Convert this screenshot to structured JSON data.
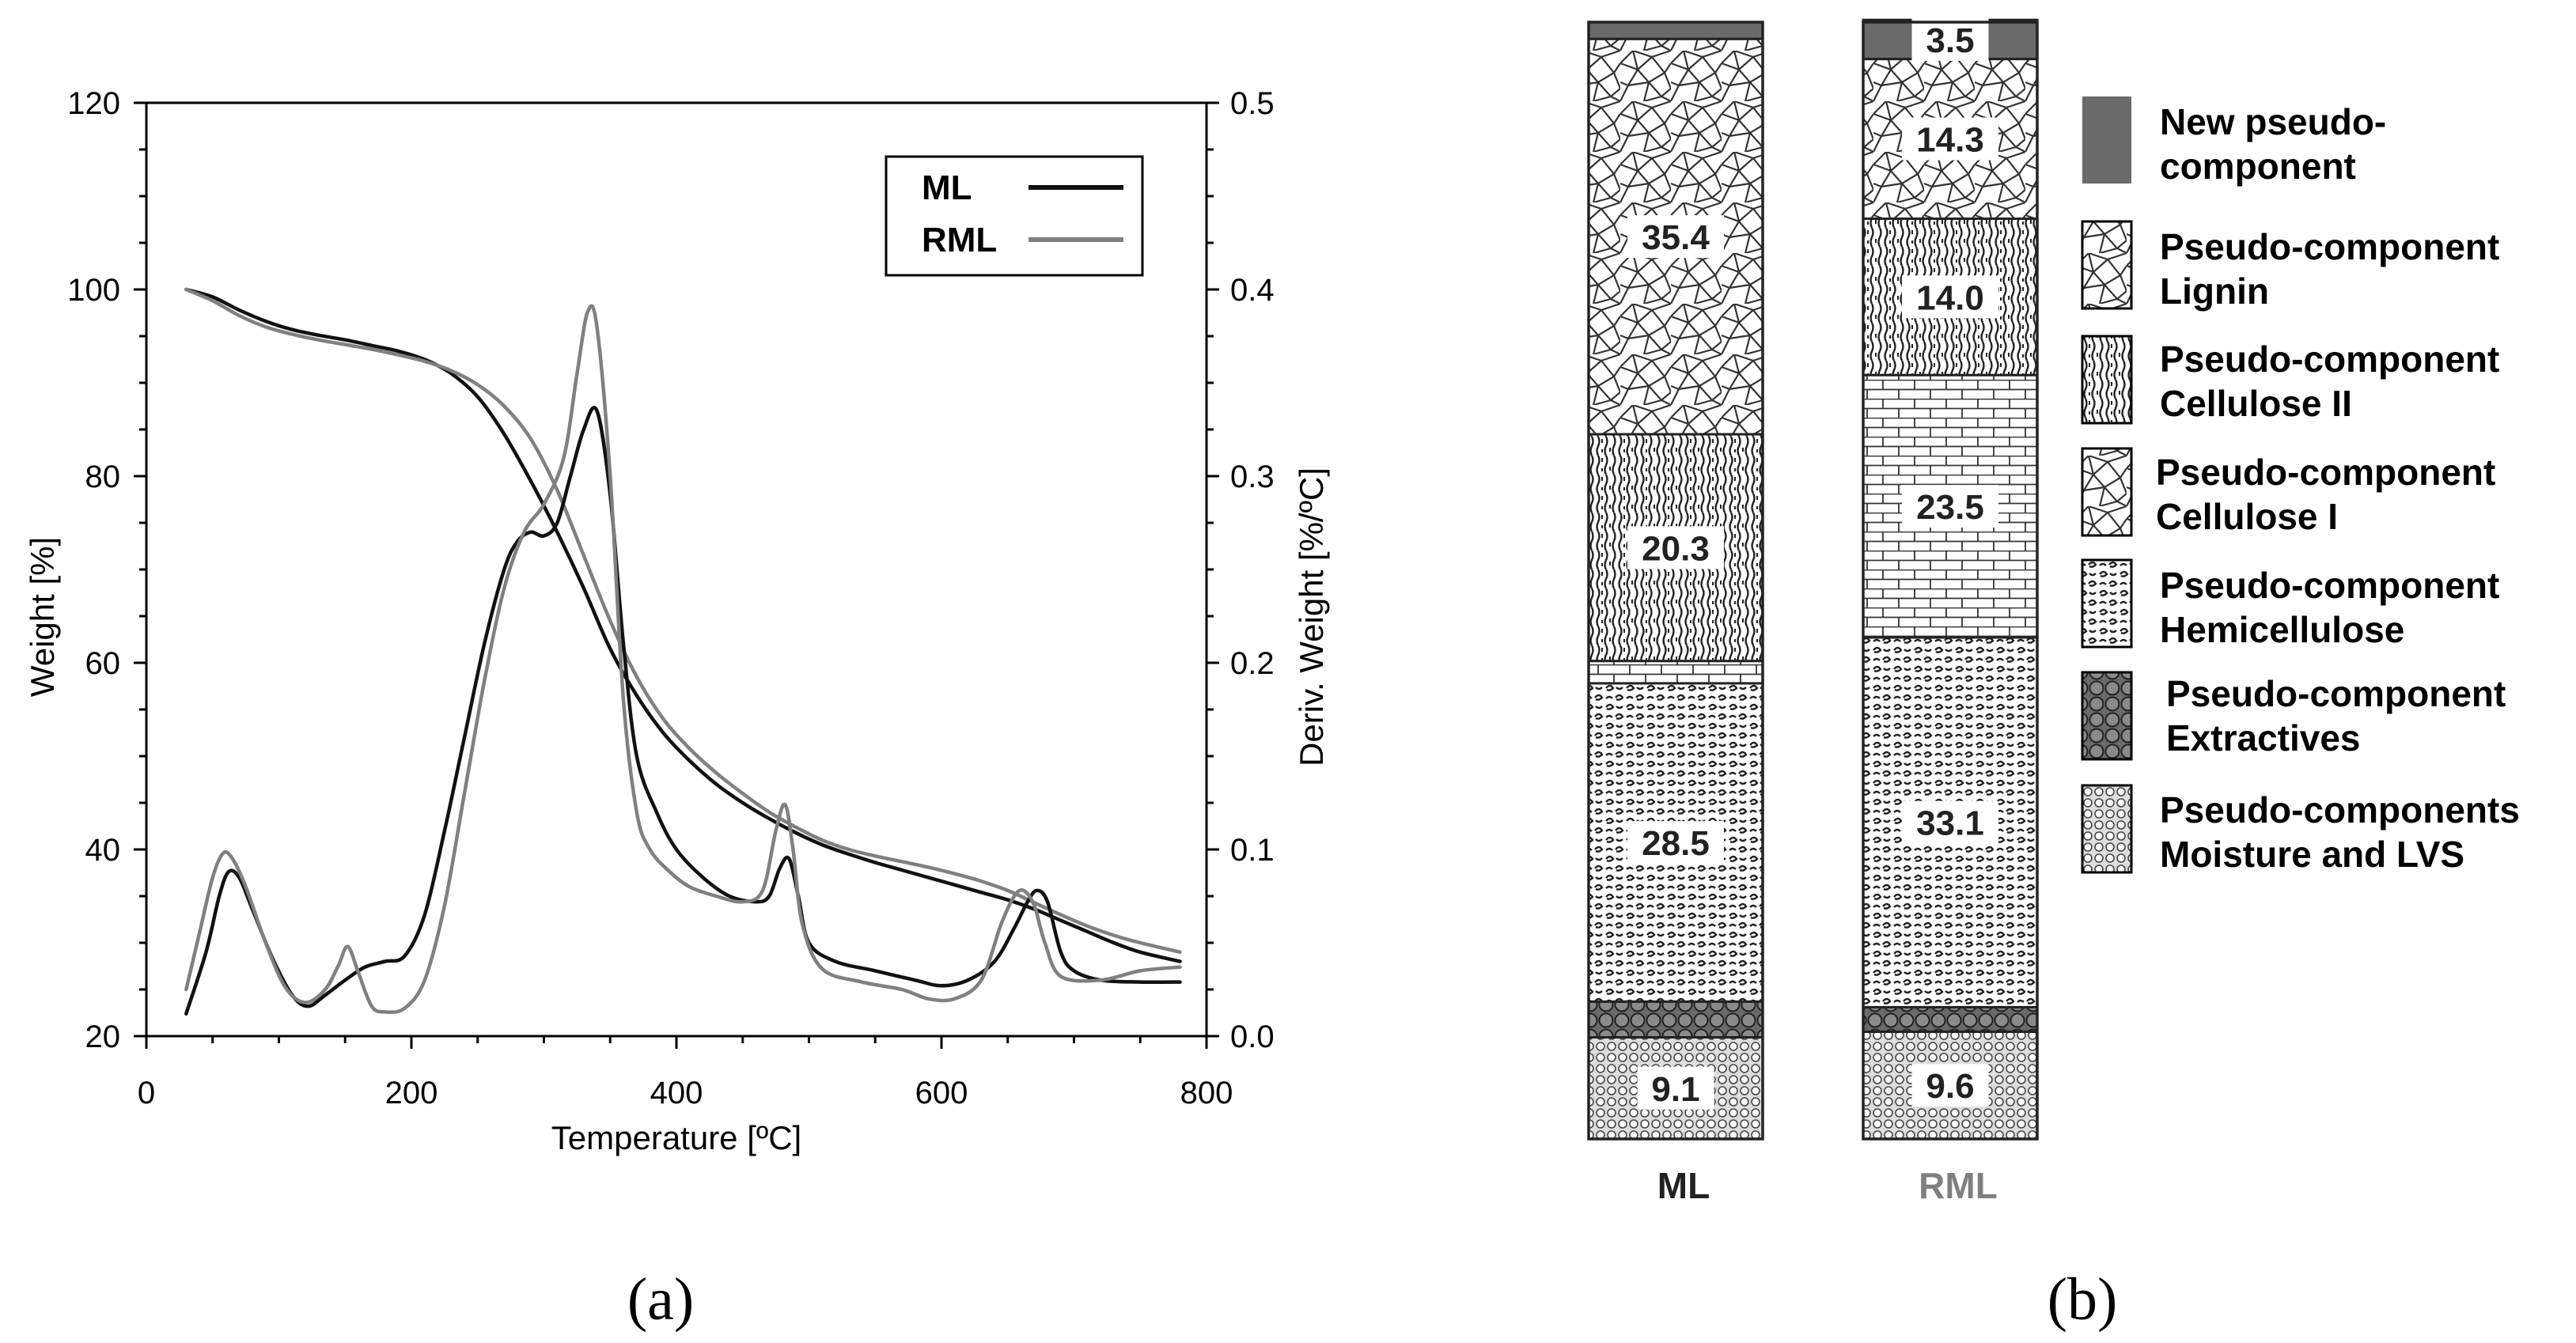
{
  "chart_data": [
    {
      "type": "line",
      "panel_label": "(a)",
      "xlabel": "Temperature [ºC]",
      "ylabel": "Weight [%]",
      "y2label": "Deriv. Weight [%/ºC]",
      "xlim": [
        0,
        800
      ],
      "ylim": [
        20,
        120
      ],
      "y2lim": [
        0.0,
        0.5
      ],
      "xticks": [
        0,
        200,
        400,
        600,
        800
      ],
      "yticks": [
        20,
        40,
        60,
        80,
        100,
        120
      ],
      "y2ticks": [
        "0.0",
        "0.1",
        "0.2",
        "0.3",
        "0.4",
        "0.5"
      ],
      "legend": {
        "position": "top-right",
        "entries": [
          "ML",
          "RML"
        ]
      },
      "colors": {
        "ML": "#111111",
        "RML": "#808080"
      },
      "series": [
        {
          "name": "ML",
          "kind": "weight",
          "axis": "left",
          "color": "#111111",
          "x": [
            30,
            50,
            70,
            90,
            110,
            130,
            150,
            170,
            190,
            210,
            230,
            250,
            270,
            290,
            310,
            330,
            350,
            370,
            390,
            410,
            430,
            450,
            470,
            490,
            510,
            530,
            550,
            570,
            590,
            610,
            630,
            650,
            670,
            690,
            710,
            730,
            750,
            780
          ],
          "y": [
            100,
            99.2,
            97.8,
            96.6,
            95.7,
            95.1,
            94.6,
            94.0,
            93.4,
            92.5,
            91.0,
            88.5,
            84.5,
            79.5,
            74.0,
            68.0,
            61.5,
            56.5,
            52.5,
            49.5,
            47.0,
            45.0,
            43.3,
            41.8,
            40.5,
            39.5,
            38.6,
            37.8,
            37.0,
            36.2,
            35.4,
            34.6,
            33.6,
            32.4,
            31.2,
            30.0,
            29.0,
            28.0
          ]
        },
        {
          "name": "RML",
          "kind": "weight",
          "axis": "left",
          "color": "#808080",
          "x": [
            30,
            50,
            70,
            90,
            110,
            130,
            150,
            170,
            190,
            210,
            230,
            250,
            270,
            290,
            310,
            330,
            350,
            370,
            390,
            410,
            430,
            450,
            470,
            490,
            510,
            530,
            550,
            570,
            590,
            610,
            630,
            650,
            670,
            690,
            710,
            730,
            750,
            780
          ],
          "y": [
            100,
            98.8,
            97.2,
            96.0,
            95.2,
            94.6,
            94.1,
            93.6,
            93.0,
            92.3,
            91.3,
            89.8,
            87.5,
            84.0,
            78.5,
            71.5,
            64.5,
            58.5,
            54.0,
            50.8,
            48.2,
            46.0,
            44.0,
            42.4,
            41.0,
            40.0,
            39.3,
            38.7,
            38.1,
            37.4,
            36.6,
            35.6,
            34.3,
            33.0,
            31.8,
            30.8,
            30.0,
            29.0
          ]
        },
        {
          "name": "ML",
          "kind": "derivative",
          "axis": "right",
          "color": "#111111",
          "x": [
            30,
            45,
            55,
            62,
            70,
            80,
            95,
            110,
            122,
            135,
            150,
            165,
            180,
            195,
            210,
            225,
            240,
            255,
            270,
            280,
            290,
            300,
            310,
            320,
            330,
            340,
            350,
            360,
            370,
            385,
            400,
            420,
            440,
            460,
            470,
            478,
            485,
            492,
            500,
            520,
            550,
            580,
            600,
            620,
            640,
            655,
            665,
            672,
            680,
            690,
            700,
            720,
            750,
            780
          ],
          "y": [
            0.012,
            0.045,
            0.075,
            0.088,
            0.085,
            0.068,
            0.042,
            0.022,
            0.016,
            0.022,
            0.03,
            0.037,
            0.04,
            0.043,
            0.065,
            0.11,
            0.16,
            0.21,
            0.25,
            0.265,
            0.27,
            0.268,
            0.275,
            0.3,
            0.325,
            0.335,
            0.29,
            0.21,
            0.15,
            0.12,
            0.1,
            0.085,
            0.075,
            0.072,
            0.075,
            0.09,
            0.095,
            0.075,
            0.05,
            0.04,
            0.035,
            0.03,
            0.027,
            0.03,
            0.04,
            0.058,
            0.072,
            0.078,
            0.072,
            0.045,
            0.035,
            0.03,
            0.029,
            0.029
          ]
        },
        {
          "name": "RML",
          "kind": "derivative",
          "axis": "right",
          "color": "#808080",
          "x": [
            30,
            40,
            50,
            58,
            65,
            75,
            90,
            105,
            120,
            135,
            145,
            152,
            160,
            170,
            180,
            195,
            210,
            225,
            240,
            255,
            270,
            285,
            300,
            315,
            325,
            333,
            340,
            350,
            360,
            370,
            380,
            395,
            410,
            430,
            450,
            465,
            475,
            482,
            488,
            495,
            510,
            540,
            570,
            590,
            610,
            630,
            645,
            655,
            662,
            670,
            678,
            690,
            720,
            750,
            780
          ],
          "y": [
            0.025,
            0.055,
            0.085,
            0.098,
            0.095,
            0.08,
            0.05,
            0.026,
            0.018,
            0.025,
            0.038,
            0.048,
            0.034,
            0.016,
            0.013,
            0.015,
            0.03,
            0.07,
            0.13,
            0.19,
            0.24,
            0.27,
            0.285,
            0.31,
            0.355,
            0.388,
            0.38,
            0.3,
            0.18,
            0.12,
            0.1,
            0.088,
            0.08,
            0.075,
            0.072,
            0.078,
            0.11,
            0.124,
            0.1,
            0.06,
            0.036,
            0.029,
            0.025,
            0.02,
            0.02,
            0.03,
            0.06,
            0.075,
            0.078,
            0.07,
            0.05,
            0.032,
            0.03,
            0.035,
            0.037
          ]
        }
      ]
    },
    {
      "type": "bar",
      "stacked": true,
      "panel_label": "(b)",
      "categories": [
        "ML",
        "RML"
      ],
      "category_colors": {
        "ML": "#222222",
        "RML": "#808080"
      },
      "total": 100,
      "series": [
        {
          "name": "Pseudo-components Moisture and LVS",
          "values": [
            9.1,
            9.6
          ],
          "labels": [
            "9.1",
            "9.6"
          ]
        },
        {
          "name": "Pseudo-component Extractives",
          "values": [
            3.2,
            2.2
          ],
          "labels": [
            "",
            ""
          ]
        },
        {
          "name": "Pseudo-component Hemicellulose",
          "values": [
            28.5,
            33.1
          ],
          "labels": [
            "28.5",
            "33.1"
          ]
        },
        {
          "name": "Pseudo-component Cellulose I",
          "values": [
            2.0,
            23.5
          ],
          "labels": [
            "",
            "23.5"
          ]
        },
        {
          "name": "Pseudo-component Cellulose II",
          "values": [
            20.3,
            14.0
          ],
          "labels": [
            "20.3",
            "14.0"
          ]
        },
        {
          "name": "Pseudo-component Lignin",
          "values": [
            35.4,
            14.3
          ],
          "labels": [
            "35.4",
            "14.3"
          ]
        },
        {
          "name": "New pseudo-component",
          "values": [
            1.5,
            3.5
          ],
          "labels": [
            "",
            "3.5"
          ]
        }
      ],
      "legend": [
        {
          "line1": "New pseudo-",
          "line2": "component",
          "pattern": "solid"
        },
        {
          "line1": "Pseudo-component",
          "line2": "Lignin",
          "pattern": "lignin"
        },
        {
          "line1": "Pseudo-component",
          "line2": "Cellulose II",
          "pattern": "cell2"
        },
        {
          "line1": "Pseudo-component",
          "line2": "Cellulose I",
          "pattern": "lignin"
        },
        {
          "line1": "Pseudo-component",
          "line2": "Hemicellulose",
          "pattern": "hemi"
        },
        {
          "line1": "Pseudo-component",
          "line2": "Extractives",
          "pattern": "extr"
        },
        {
          "line1": "Pseudo-components",
          "line2": "Moisture and LVS",
          "pattern": "moist"
        }
      ]
    }
  ]
}
